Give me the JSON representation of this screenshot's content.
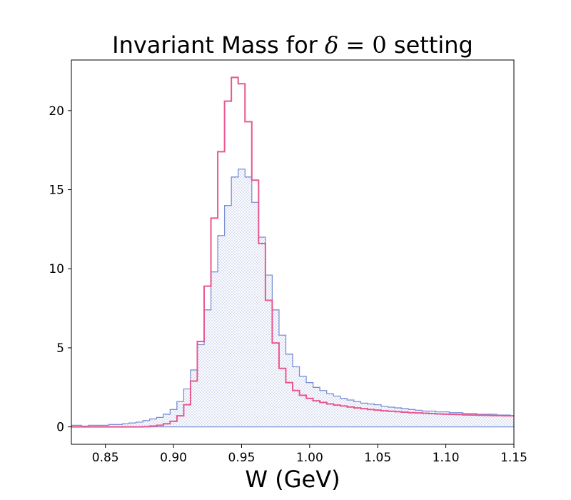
{
  "chart_data": {
    "type": "histogram",
    "title_prefix": "Invariant Mass for ",
    "title_math_symbol": "δ",
    "title_math_rest": " = 0",
    "title_suffix": " setting",
    "xlabel": "W (GeV)",
    "ylabel": "",
    "xlim": [
      0.825,
      1.15
    ],
    "ylim": [
      -1.1,
      23.2
    ],
    "x_ticks": [
      "0.85",
      "0.90",
      "0.95",
      "1.00",
      "1.05",
      "1.10",
      "1.15"
    ],
    "y_ticks": [
      "0",
      "5",
      "10",
      "15",
      "20"
    ],
    "grid": false,
    "legend": "none",
    "colors": {
      "filled": "#7b8fd6",
      "filled_hatch": "#a8b4e3",
      "line": "#e8578f"
    },
    "series": [
      {
        "style": "filled-step-hatched",
        "points": [
          [
            0.825,
            0.1
          ],
          [
            0.83,
            0.1
          ],
          [
            0.835,
            0.05
          ],
          [
            0.84,
            0.1
          ],
          [
            0.845,
            0.1
          ],
          [
            0.85,
            0.1
          ],
          [
            0.855,
            0.15
          ],
          [
            0.86,
            0.15
          ],
          [
            0.865,
            0.2
          ],
          [
            0.87,
            0.25
          ],
          [
            0.875,
            0.3
          ],
          [
            0.88,
            0.4
          ],
          [
            0.885,
            0.5
          ],
          [
            0.89,
            0.6
          ],
          [
            0.895,
            0.8
          ],
          [
            0.9,
            1.1
          ],
          [
            0.905,
            1.6
          ],
          [
            0.91,
            2.4
          ],
          [
            0.915,
            3.6
          ],
          [
            0.92,
            5.2
          ],
          [
            0.925,
            7.4
          ],
          [
            0.93,
            9.8
          ],
          [
            0.935,
            12.1
          ],
          [
            0.94,
            14.0
          ],
          [
            0.945,
            15.8
          ],
          [
            0.95,
            16.3
          ],
          [
            0.955,
            15.8
          ],
          [
            0.96,
            14.2
          ],
          [
            0.965,
            12.0
          ],
          [
            0.97,
            9.6
          ],
          [
            0.975,
            7.4
          ],
          [
            0.98,
            5.8
          ],
          [
            0.985,
            4.6
          ],
          [
            0.99,
            3.8
          ],
          [
            0.995,
            3.2
          ],
          [
            1.0,
            2.8
          ],
          [
            1.005,
            2.5
          ],
          [
            1.01,
            2.3
          ],
          [
            1.015,
            2.1
          ],
          [
            1.02,
            1.95
          ],
          [
            1.025,
            1.8
          ],
          [
            1.03,
            1.7
          ],
          [
            1.035,
            1.6
          ],
          [
            1.04,
            1.5
          ],
          [
            1.045,
            1.45
          ],
          [
            1.05,
            1.4
          ],
          [
            1.055,
            1.3
          ],
          [
            1.06,
            1.25
          ],
          [
            1.065,
            1.2
          ],
          [
            1.07,
            1.15
          ],
          [
            1.075,
            1.1
          ],
          [
            1.08,
            1.05
          ],
          [
            1.085,
            1.0
          ],
          [
            1.09,
            1.0
          ],
          [
            1.095,
            0.95
          ],
          [
            1.1,
            0.95
          ],
          [
            1.105,
            0.9
          ],
          [
            1.11,
            0.9
          ],
          [
            1.115,
            0.85
          ],
          [
            1.12,
            0.85
          ],
          [
            1.125,
            0.8
          ],
          [
            1.13,
            0.8
          ],
          [
            1.135,
            0.8
          ],
          [
            1.14,
            0.75
          ],
          [
            1.145,
            0.75
          ],
          [
            1.15,
            0.7
          ]
        ]
      },
      {
        "style": "line-step",
        "points": [
          [
            0.825,
            0.0
          ],
          [
            0.83,
            0.0
          ],
          [
            0.835,
            0.0
          ],
          [
            0.84,
            0.0
          ],
          [
            0.845,
            0.0
          ],
          [
            0.85,
            0.0
          ],
          [
            0.855,
            0.0
          ],
          [
            0.86,
            0.0
          ],
          [
            0.865,
            0.0
          ],
          [
            0.87,
            0.0
          ],
          [
            0.875,
            0.0
          ],
          [
            0.88,
            0.02
          ],
          [
            0.885,
            0.05
          ],
          [
            0.89,
            0.1
          ],
          [
            0.895,
            0.2
          ],
          [
            0.9,
            0.35
          ],
          [
            0.905,
            0.7
          ],
          [
            0.91,
            1.4
          ],
          [
            0.915,
            2.9
          ],
          [
            0.92,
            5.4
          ],
          [
            0.925,
            8.9
          ],
          [
            0.93,
            13.2
          ],
          [
            0.935,
            17.4
          ],
          [
            0.94,
            20.6
          ],
          [
            0.945,
            22.1
          ],
          [
            0.95,
            21.7
          ],
          [
            0.955,
            19.3
          ],
          [
            0.96,
            15.6
          ],
          [
            0.965,
            11.6
          ],
          [
            0.97,
            8.0
          ],
          [
            0.975,
            5.3
          ],
          [
            0.98,
            3.7
          ],
          [
            0.985,
            2.8
          ],
          [
            0.99,
            2.3
          ],
          [
            0.995,
            2.0
          ],
          [
            1.0,
            1.8
          ],
          [
            1.005,
            1.65
          ],
          [
            1.01,
            1.55
          ],
          [
            1.015,
            1.45
          ],
          [
            1.02,
            1.38
          ],
          [
            1.025,
            1.32
          ],
          [
            1.03,
            1.26
          ],
          [
            1.035,
            1.2
          ],
          [
            1.04,
            1.15
          ],
          [
            1.045,
            1.1
          ],
          [
            1.05,
            1.06
          ],
          [
            1.055,
            1.02
          ],
          [
            1.06,
            0.99
          ],
          [
            1.065,
            0.96
          ],
          [
            1.07,
            0.93
          ],
          [
            1.075,
            0.9
          ],
          [
            1.08,
            0.88
          ],
          [
            1.085,
            0.86
          ],
          [
            1.09,
            0.84
          ],
          [
            1.095,
            0.82
          ],
          [
            1.1,
            0.8
          ],
          [
            1.105,
            0.79
          ],
          [
            1.11,
            0.78
          ],
          [
            1.115,
            0.76
          ],
          [
            1.12,
            0.75
          ],
          [
            1.125,
            0.74
          ],
          [
            1.13,
            0.73
          ],
          [
            1.135,
            0.72
          ],
          [
            1.14,
            0.71
          ],
          [
            1.145,
            0.7
          ],
          [
            1.15,
            0.7
          ]
        ]
      }
    ]
  }
}
